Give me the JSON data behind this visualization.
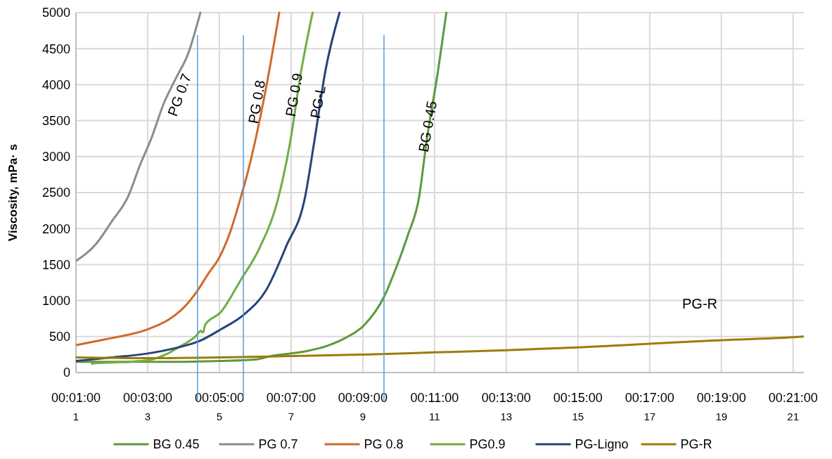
{
  "chart_data": {
    "type": "line",
    "ylabel": "Viscosity, mPa· s",
    "xlim": [
      1,
      21.3
    ],
    "ylim": [
      0,
      5000
    ],
    "xticks": [
      {
        "value": 1,
        "label": "00:01:00"
      },
      {
        "value": 3,
        "label": "00:03:00"
      },
      {
        "value": 5,
        "label": "00:05:00"
      },
      {
        "value": 7,
        "label": "00:07:00"
      },
      {
        "value": 9,
        "label": "00:09:00"
      },
      {
        "value": 11,
        "label": "00:11:00"
      },
      {
        "value": 13,
        "label": "00:13:00"
      },
      {
        "value": 15,
        "label": "00:15:00"
      },
      {
        "value": 17,
        "label": "00:17:00"
      },
      {
        "value": 19,
        "label": "00:19:00"
      },
      {
        "value": 21,
        "label": "00:21:00"
      }
    ],
    "x2lim": [
      1,
      21.3
    ],
    "x2ticks": [
      1,
      3,
      5,
      7,
      9,
      11,
      13,
      15,
      17,
      19,
      21
    ],
    "yticks": [
      0,
      500,
      1000,
      1500,
      2000,
      2500,
      3000,
      3500,
      4000,
      4500,
      5000
    ],
    "grid": true,
    "legend": "bottom",
    "line_style": "solid",
    "series": [
      {
        "name": "BG 0.45",
        "color": "#5b9a3c",
        "x": [
          1,
          2,
          3,
          4,
          5,
          6,
          6.45,
          7.35,
          8,
          8.47,
          9.04,
          9.59,
          9.94,
          10.25,
          10.57,
          10.78,
          11.1,
          11.33
        ],
        "values": [
          150,
          150,
          150,
          150,
          160,
          180,
          230,
          290,
          370,
          470,
          660,
          1050,
          1470,
          1900,
          2440,
          3220,
          4200,
          5000
        ]
      },
      {
        "name": "PG 0.7",
        "color": "#8c8c8c",
        "x": [
          1,
          1.2,
          1.55,
          2,
          2.45,
          2.8,
          3.1,
          3.45,
          3.8,
          4.12,
          4.47
        ],
        "values": [
          1550,
          1620,
          1780,
          2100,
          2440,
          2900,
          3250,
          3740,
          4100,
          4420,
          5000
        ]
      },
      {
        "name": "PG 0.8",
        "color": "#d06a2a",
        "x": [
          1,
          1.5,
          2,
          2.5,
          3,
          3.2,
          3.6,
          4,
          4.35,
          4.7,
          5,
          5.3,
          5.6,
          5.8,
          6,
          6.33,
          6.67
        ],
        "values": [
          380,
          430,
          480,
          530,
          600,
          640,
          740,
          900,
          1110,
          1380,
          1600,
          1950,
          2440,
          2800,
          3220,
          4030,
          5000
        ]
      },
      {
        "name": "PG0.9",
        "color": "#70ad47",
        "x": [
          1.45,
          1.51,
          2,
          2.5,
          3,
          3.5,
          3.86,
          4.35,
          4.49,
          4.52,
          4.55,
          4.6,
          5.04,
          5.6,
          6.1,
          6.65,
          6.98,
          7.25,
          7.6
        ],
        "values": [
          120,
          130,
          140,
          150,
          170,
          250,
          350,
          510,
          580,
          560,
          560,
          660,
          840,
          1290,
          1710,
          2440,
          3220,
          4100,
          5000
        ]
      },
      {
        "name": "PG-Ligno",
        "color": "#264478",
        "x": [
          1,
          2,
          2.94,
          3.86,
          4.41,
          5.04,
          5.67,
          6.31,
          6.86,
          7.39,
          7.65,
          7.96,
          8.35
        ],
        "values": [
          160,
          210,
          260,
          350,
          430,
          600,
          800,
          1150,
          1750,
          2440,
          3220,
          4200,
          5000
        ]
      },
      {
        "name": "PG-R",
        "color": "#9e7b08",
        "x": [
          1,
          3,
          5,
          7,
          9,
          11,
          13,
          15,
          17,
          19,
          21,
          21.3
        ],
        "values": [
          210,
          200,
          210,
          230,
          250,
          280,
          310,
          350,
          400,
          450,
          490,
          500
        ]
      }
    ],
    "ref_lines": [
      {
        "axis": "x",
        "value": 4.39,
        "color": "#5b9bd5"
      },
      {
        "axis": "x",
        "value": 5.67,
        "color": "#5b9bd5"
      },
      {
        "axis": "x",
        "value": 9.59,
        "color": "#5b9bd5"
      }
    ],
    "annotations": [
      "PG 0.7",
      "PG 0.8",
      "PG 0.9",
      "PG-L",
      "BG 0.45",
      "PG-R"
    ]
  }
}
